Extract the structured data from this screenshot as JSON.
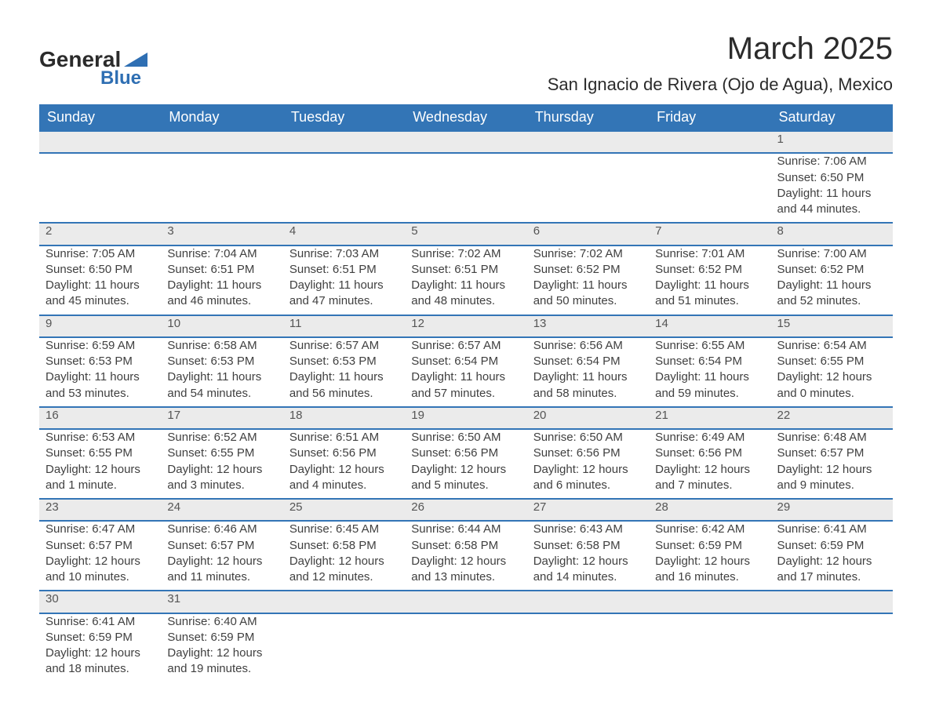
{
  "logo": {
    "text_top": "General",
    "text_bottom": "Blue",
    "shape_color": "#2f6fb3"
  },
  "title": "March 2025",
  "location": "San Ignacio de Rivera (Ojo de Agua), Mexico",
  "colors": {
    "header_bg": "#3375b6",
    "header_text": "#ffffff",
    "daynum_bg": "#ebebeb",
    "border": "#3375b6",
    "body_text": "#404040"
  },
  "day_headers": [
    "Sunday",
    "Monday",
    "Tuesday",
    "Wednesday",
    "Thursday",
    "Friday",
    "Saturday"
  ],
  "weeks": [
    [
      null,
      null,
      null,
      null,
      null,
      null,
      {
        "n": "1",
        "sunrise": "7:06 AM",
        "sunset": "6:50 PM",
        "daylight": "11 hours and 44 minutes."
      }
    ],
    [
      {
        "n": "2",
        "sunrise": "7:05 AM",
        "sunset": "6:50 PM",
        "daylight": "11 hours and 45 minutes."
      },
      {
        "n": "3",
        "sunrise": "7:04 AM",
        "sunset": "6:51 PM",
        "daylight": "11 hours and 46 minutes."
      },
      {
        "n": "4",
        "sunrise": "7:03 AM",
        "sunset": "6:51 PM",
        "daylight": "11 hours and 47 minutes."
      },
      {
        "n": "5",
        "sunrise": "7:02 AM",
        "sunset": "6:51 PM",
        "daylight": "11 hours and 48 minutes."
      },
      {
        "n": "6",
        "sunrise": "7:02 AM",
        "sunset": "6:52 PM",
        "daylight": "11 hours and 50 minutes."
      },
      {
        "n": "7",
        "sunrise": "7:01 AM",
        "sunset": "6:52 PM",
        "daylight": "11 hours and 51 minutes."
      },
      {
        "n": "8",
        "sunrise": "7:00 AM",
        "sunset": "6:52 PM",
        "daylight": "11 hours and 52 minutes."
      }
    ],
    [
      {
        "n": "9",
        "sunrise": "6:59 AM",
        "sunset": "6:53 PM",
        "daylight": "11 hours and 53 minutes."
      },
      {
        "n": "10",
        "sunrise": "6:58 AM",
        "sunset": "6:53 PM",
        "daylight": "11 hours and 54 minutes."
      },
      {
        "n": "11",
        "sunrise": "6:57 AM",
        "sunset": "6:53 PM",
        "daylight": "11 hours and 56 minutes."
      },
      {
        "n": "12",
        "sunrise": "6:57 AM",
        "sunset": "6:54 PM",
        "daylight": "11 hours and 57 minutes."
      },
      {
        "n": "13",
        "sunrise": "6:56 AM",
        "sunset": "6:54 PM",
        "daylight": "11 hours and 58 minutes."
      },
      {
        "n": "14",
        "sunrise": "6:55 AM",
        "sunset": "6:54 PM",
        "daylight": "11 hours and 59 minutes."
      },
      {
        "n": "15",
        "sunrise": "6:54 AM",
        "sunset": "6:55 PM",
        "daylight": "12 hours and 0 minutes."
      }
    ],
    [
      {
        "n": "16",
        "sunrise": "6:53 AM",
        "sunset": "6:55 PM",
        "daylight": "12 hours and 1 minute."
      },
      {
        "n": "17",
        "sunrise": "6:52 AM",
        "sunset": "6:55 PM",
        "daylight": "12 hours and 3 minutes."
      },
      {
        "n": "18",
        "sunrise": "6:51 AM",
        "sunset": "6:56 PM",
        "daylight": "12 hours and 4 minutes."
      },
      {
        "n": "19",
        "sunrise": "6:50 AM",
        "sunset": "6:56 PM",
        "daylight": "12 hours and 5 minutes."
      },
      {
        "n": "20",
        "sunrise": "6:50 AM",
        "sunset": "6:56 PM",
        "daylight": "12 hours and 6 minutes."
      },
      {
        "n": "21",
        "sunrise": "6:49 AM",
        "sunset": "6:56 PM",
        "daylight": "12 hours and 7 minutes."
      },
      {
        "n": "22",
        "sunrise": "6:48 AM",
        "sunset": "6:57 PM",
        "daylight": "12 hours and 9 minutes."
      }
    ],
    [
      {
        "n": "23",
        "sunrise": "6:47 AM",
        "sunset": "6:57 PM",
        "daylight": "12 hours and 10 minutes."
      },
      {
        "n": "24",
        "sunrise": "6:46 AM",
        "sunset": "6:57 PM",
        "daylight": "12 hours and 11 minutes."
      },
      {
        "n": "25",
        "sunrise": "6:45 AM",
        "sunset": "6:58 PM",
        "daylight": "12 hours and 12 minutes."
      },
      {
        "n": "26",
        "sunrise": "6:44 AM",
        "sunset": "6:58 PM",
        "daylight": "12 hours and 13 minutes."
      },
      {
        "n": "27",
        "sunrise": "6:43 AM",
        "sunset": "6:58 PM",
        "daylight": "12 hours and 14 minutes."
      },
      {
        "n": "28",
        "sunrise": "6:42 AM",
        "sunset": "6:59 PM",
        "daylight": "12 hours and 16 minutes."
      },
      {
        "n": "29",
        "sunrise": "6:41 AM",
        "sunset": "6:59 PM",
        "daylight": "12 hours and 17 minutes."
      }
    ],
    [
      {
        "n": "30",
        "sunrise": "6:41 AM",
        "sunset": "6:59 PM",
        "daylight": "12 hours and 18 minutes."
      },
      {
        "n": "31",
        "sunrise": "6:40 AM",
        "sunset": "6:59 PM",
        "daylight": "12 hours and 19 minutes."
      },
      null,
      null,
      null,
      null,
      null
    ]
  ],
  "labels": {
    "sunrise": "Sunrise:",
    "sunset": "Sunset:",
    "daylight": "Daylight:"
  }
}
